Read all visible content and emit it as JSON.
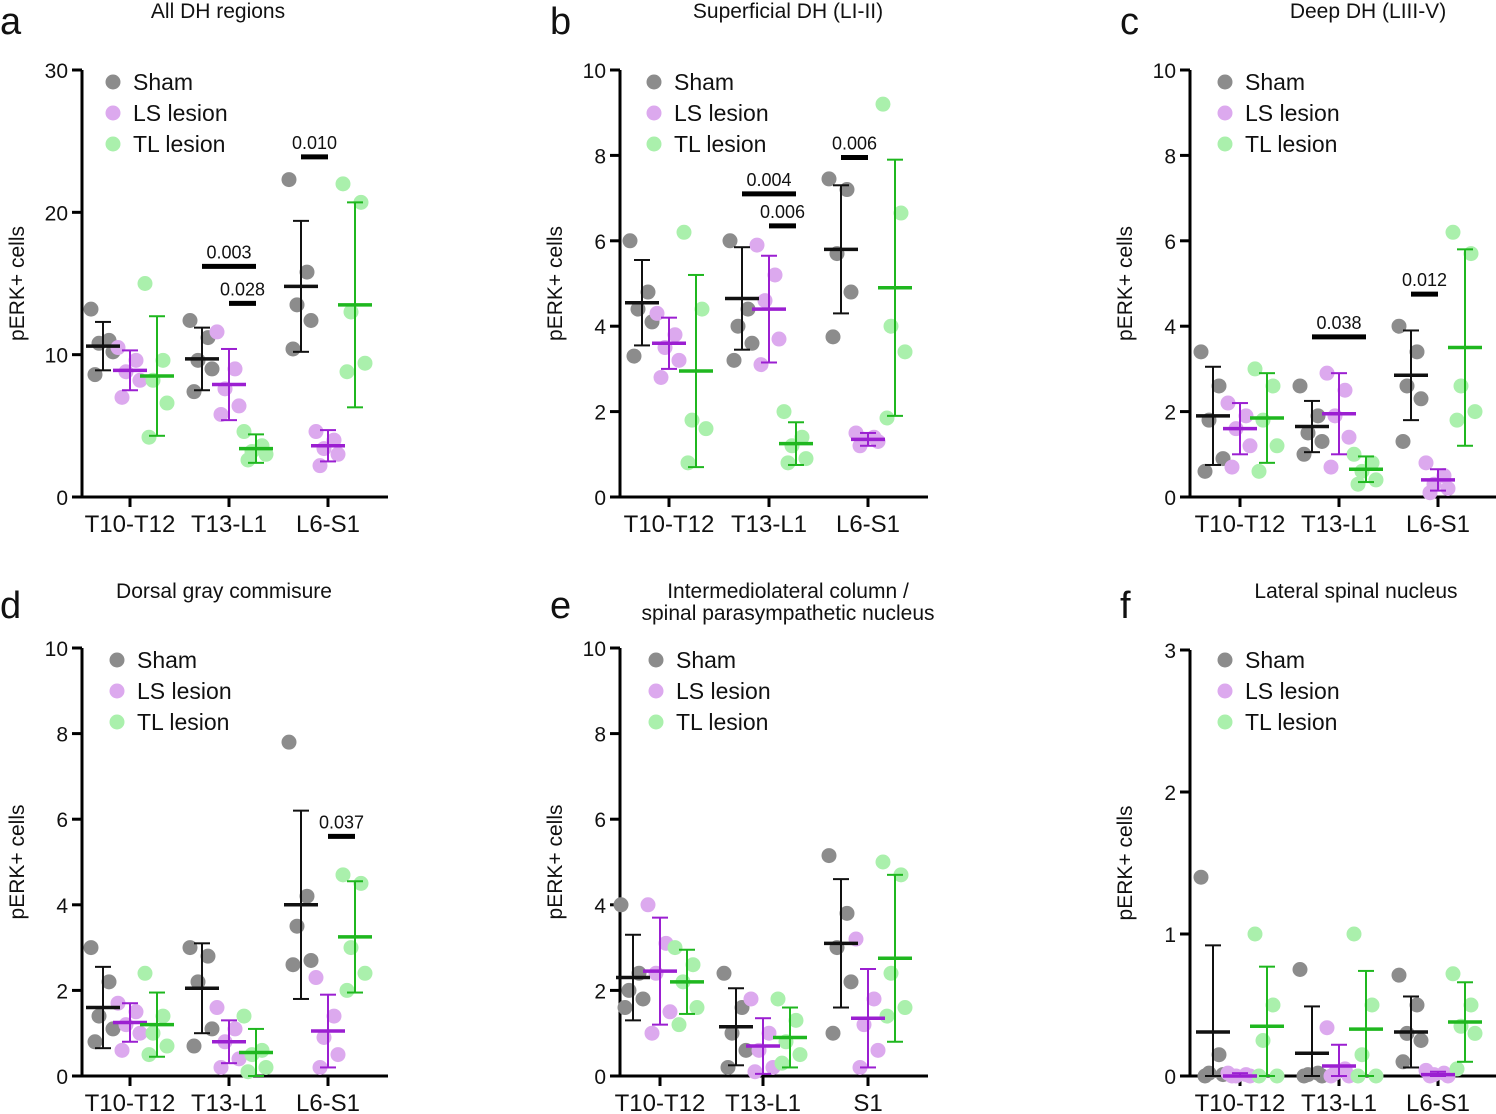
{
  "colors": {
    "sham": {
      "dot": "#8c8c8c",
      "line": "#111111"
    },
    "ls": {
      "dot": "#dca9ee",
      "line": "#9b1fd1"
    },
    "tl": {
      "dot": "#aaf0ac",
      "line": "#1fb71f"
    },
    "axis": "#000000"
  },
  "legend": [
    "Sham",
    "LS lesion",
    "TL lesion"
  ],
  "chart_data": [
    {
      "letter": "a",
      "title": [
        "All DH regions"
      ],
      "type": "scatter",
      "ylabel": "pERK+ cells",
      "ylim": [
        0,
        30
      ],
      "yticks": [
        0,
        10,
        20,
        30
      ],
      "categories": [
        "T10-T12",
        "T13-L1",
        "L6-S1"
      ],
      "series": [
        {
          "name": "Sham",
          "mean": [
            10.6,
            9.7,
            14.8
          ],
          "sd": [
            1.7,
            2.2,
            4.6
          ],
          "points": [
            [
              13.2,
              11.0,
              10.8,
              10.2,
              8.6
            ],
            [
              12.4,
              11.2,
              9.6,
              9.0,
              7.4
            ],
            [
              22.3,
              15.8,
              13.5,
              12.4,
              10.4
            ]
          ]
        },
        {
          "name": "LS lesion",
          "mean": [
            8.9,
            7.9,
            3.6
          ],
          "sd": [
            1.4,
            2.5,
            1.1
          ],
          "points": [
            [
              10.5,
              9.6,
              8.8,
              8.2,
              7.0
            ],
            [
              11.6,
              9.0,
              7.6,
              6.4,
              5.8
            ],
            [
              4.6,
              4.0,
              3.4,
              3.0,
              2.2
            ]
          ]
        },
        {
          "name": "TL lesion",
          "mean": [
            8.5,
            3.4,
            13.5
          ],
          "sd": [
            4.2,
            1.0,
            7.2
          ],
          "points": [
            [
              15.0,
              9.6,
              8.2,
              6.6,
              4.2
            ],
            [
              4.6,
              3.6,
              3.2,
              3.0,
              2.6
            ],
            [
              22.0,
              20.7,
              13.0,
              9.4,
              8.8
            ]
          ]
        }
      ],
      "comparisons": [
        {
          "label": "0.003",
          "cat": 1,
          "from": 0,
          "to": 2,
          "y": 16.2
        },
        {
          "label": "0.028",
          "cat": 1,
          "from": 1,
          "to": 2,
          "y": 13.6
        },
        {
          "label": "0.010",
          "cat": 2,
          "from": 0,
          "to": 1,
          "y": 23.9
        }
      ]
    },
    {
      "letter": "b",
      "title": [
        "Superficial DH (LI-II)"
      ],
      "type": "scatter",
      "ylabel": "pERK+ cells",
      "ylim": [
        0,
        10
      ],
      "yticks": [
        0,
        2,
        4,
        6,
        8,
        10
      ],
      "categories": [
        "T10-T12",
        "T13-L1",
        "L6-S1"
      ],
      "series": [
        {
          "name": "Sham",
          "mean": [
            4.55,
            4.65,
            5.8
          ],
          "sd": [
            1.0,
            1.2,
            1.5
          ],
          "points": [
            [
              6.0,
              4.8,
              4.4,
              4.1,
              3.3
            ],
            [
              6.0,
              4.4,
              4.0,
              3.6,
              3.2
            ],
            [
              7.45,
              7.2,
              5.7,
              4.8,
              3.75
            ]
          ]
        },
        {
          "name": "LS lesion",
          "mean": [
            3.6,
            4.4,
            1.35
          ],
          "sd": [
            0.6,
            1.25,
            0.15
          ],
          "points": [
            [
              4.3,
              3.8,
              3.5,
              3.2,
              2.8
            ],
            [
              5.9,
              5.2,
              4.6,
              3.7,
              3.1
            ],
            [
              1.5,
              1.4,
              1.35,
              1.3,
              1.2
            ]
          ]
        },
        {
          "name": "TL lesion",
          "mean": [
            2.95,
            1.25,
            4.9
          ],
          "sd": [
            2.25,
            0.5,
            3.0
          ],
          "points": [
            [
              6.2,
              4.4,
              1.8,
              1.6,
              0.8
            ],
            [
              2.0,
              1.4,
              1.2,
              0.9,
              0.8
            ],
            [
              9.2,
              6.65,
              4.0,
              3.4,
              1.85
            ]
          ]
        }
      ],
      "comparisons": [
        {
          "label": "0.004",
          "cat": 1,
          "from": 0,
          "to": 2,
          "y": 7.1
        },
        {
          "label": "0.006",
          "cat": 1,
          "from": 1,
          "to": 2,
          "y": 6.35
        },
        {
          "label": "0.006",
          "cat": 2,
          "from": 0,
          "to": 1,
          "y": 7.95
        }
      ]
    },
    {
      "letter": "c",
      "title": [
        "Deep DH (LIII-V)"
      ],
      "type": "scatter",
      "ylabel": "pERK+ cells",
      "ylim": [
        0,
        10
      ],
      "yticks": [
        0,
        2,
        4,
        6,
        8,
        10
      ],
      "categories": [
        "T10-T12",
        "T13-L1",
        "L6-S1"
      ],
      "series": [
        {
          "name": "Sham",
          "mean": [
            1.9,
            1.65,
            2.85
          ],
          "sd": [
            1.15,
            0.6,
            1.05
          ],
          "points": [
            [
              3.4,
              2.6,
              1.8,
              0.9,
              0.6
            ],
            [
              2.6,
              1.9,
              1.5,
              1.3,
              1.0
            ],
            [
              4.0,
              3.4,
              2.6,
              2.3,
              1.3
            ]
          ]
        },
        {
          "name": "LS lesion",
          "mean": [
            1.6,
            1.95,
            0.4
          ],
          "sd": [
            0.6,
            0.95,
            0.25
          ],
          "points": [
            [
              2.2,
              1.9,
              1.6,
              1.2,
              0.7
            ],
            [
              2.9,
              2.5,
              1.9,
              1.4,
              0.7
            ],
            [
              0.8,
              0.5,
              0.3,
              0.2,
              0.1
            ]
          ]
        },
        {
          "name": "TL lesion",
          "mean": [
            1.85,
            0.65,
            3.5
          ],
          "sd": [
            1.05,
            0.3,
            2.3
          ],
          "points": [
            [
              3.0,
              2.6,
              1.8,
              1.2,
              0.6
            ],
            [
              1.0,
              0.8,
              0.6,
              0.4,
              0.3
            ],
            [
              6.2,
              5.7,
              2.6,
              2.0,
              1.8
            ]
          ]
        }
      ],
      "comparisons": [
        {
          "label": "0.038",
          "cat": 1,
          "from": 0,
          "to": 2,
          "y": 3.75
        },
        {
          "label": "0.012",
          "cat": 2,
          "from": 0,
          "to": 1,
          "y": 4.75
        }
      ]
    },
    {
      "letter": "d",
      "title": [
        "Dorsal gray commisure"
      ],
      "type": "scatter",
      "ylabel": "pERK+ cells",
      "ylim": [
        0,
        10
      ],
      "yticks": [
        0,
        2,
        4,
        6,
        8,
        10
      ],
      "categories": [
        "T10-T12",
        "T13-L1",
        "L6-S1"
      ],
      "series": [
        {
          "name": "Sham",
          "mean": [
            1.6,
            2.05,
            4.0
          ],
          "sd": [
            0.95,
            1.05,
            2.2
          ],
          "points": [
            [
              3.0,
              2.2,
              1.4,
              1.1,
              0.8
            ],
            [
              3.0,
              2.8,
              2.2,
              1.1,
              0.7
            ],
            [
              7.8,
              4.2,
              3.5,
              2.7,
              2.6
            ]
          ]
        },
        {
          "name": "LS lesion",
          "mean": [
            1.25,
            0.8,
            1.05
          ],
          "sd": [
            0.45,
            0.5,
            0.85
          ],
          "points": [
            [
              1.7,
              1.5,
              1.2,
              1.0,
              0.6
            ],
            [
              1.6,
              1.1,
              0.8,
              0.4,
              0.2
            ],
            [
              2.3,
              1.4,
              0.9,
              0.5,
              0.2
            ]
          ]
        },
        {
          "name": "TL lesion",
          "mean": [
            1.2,
            0.55,
            3.25
          ],
          "sd": [
            0.75,
            0.55,
            1.3
          ],
          "points": [
            [
              2.4,
              1.4,
              1.0,
              0.7,
              0.5
            ],
            [
              1.4,
              0.6,
              0.5,
              0.2,
              0.1
            ],
            [
              4.7,
              4.5,
              3.0,
              2.4,
              2.0
            ]
          ]
        }
      ],
      "comparisons": [
        {
          "label": "0.037",
          "cat": 2,
          "from": 1,
          "to": 2,
          "y": 5.6
        }
      ]
    },
    {
      "letter": "e",
      "title": [
        "Intermediolateral column /",
        "spinal parasympathetic nucleus"
      ],
      "type": "scatter",
      "ylabel": "pERK+ cells",
      "ylim": [
        0,
        10
      ],
      "yticks": [
        0,
        2,
        4,
        6,
        8,
        10
      ],
      "categories": [
        "T10-T12",
        "T13-L1",
        "S1"
      ],
      "series": [
        {
          "name": "Sham",
          "mean": [
            2.3,
            1.15,
            3.1
          ],
          "sd": [
            1.0,
            0.9,
            1.5
          ],
          "points": [
            [
              4.0,
              2.4,
              2.0,
              1.8,
              1.6
            ],
            [
              2.4,
              1.6,
              1.0,
              0.6,
              0.2
            ],
            [
              5.15,
              3.8,
              3.0,
              2.2,
              1.0
            ]
          ]
        },
        {
          "name": "LS lesion",
          "mean": [
            2.45,
            0.7,
            1.35
          ],
          "sd": [
            1.25,
            0.65,
            1.15
          ],
          "points": [
            [
              4.0,
              3.1,
              2.4,
              1.5,
              1.0
            ],
            [
              1.8,
              1.0,
              0.6,
              0.2,
              0.1
            ],
            [
              3.2,
              1.8,
              1.2,
              0.6,
              0.2
            ]
          ]
        },
        {
          "name": "TL lesion",
          "mean": [
            2.2,
            0.9,
            2.75
          ],
          "sd": [
            0.75,
            0.7,
            1.95
          ],
          "points": [
            [
              3.0,
              2.6,
              2.2,
              1.6,
              1.2
            ],
            [
              1.8,
              1.3,
              0.8,
              0.5,
              0.3
            ],
            [
              5.0,
              4.7,
              2.4,
              1.6,
              1.4
            ]
          ]
        }
      ],
      "comparisons": []
    },
    {
      "letter": "f",
      "title": [
        "Lateral spinal nucleus"
      ],
      "type": "scatter",
      "ylabel": "pERK+ cells",
      "ylim": [
        0,
        3
      ],
      "yticks": [
        0,
        1,
        2,
        3
      ],
      "categories": [
        "T10-T12",
        "T13-L1",
        "L6-S1"
      ],
      "series": [
        {
          "name": "Sham",
          "mean": [
            0.31,
            0.16,
            0.31
          ],
          "sd": [
            0.61,
            0.33,
            0.25
          ],
          "points": [
            [
              1.4,
              0.15,
              0.02,
              0.01,
              0.0
            ],
            [
              0.75,
              0.02,
              0.01,
              0.0,
              0.0
            ],
            [
              0.71,
              0.5,
              0.3,
              0.25,
              0.1
            ]
          ]
        },
        {
          "name": "LS lesion",
          "mean": [
            0.0,
            0.07,
            0.01
          ],
          "sd": [
            0.02,
            0.15,
            0.02
          ],
          "points": [
            [
              0.02,
              0.01,
              0.0,
              0.0,
              0.0
            ],
            [
              0.34,
              0.05,
              0.02,
              0.0,
              0.0
            ],
            [
              0.04,
              0.02,
              0.01,
              0.0,
              0.0
            ]
          ]
        },
        {
          "name": "TL lesion",
          "mean": [
            0.35,
            0.33,
            0.38
          ],
          "sd": [
            0.42,
            0.41,
            0.28
          ],
          "points": [
            [
              1.0,
              0.5,
              0.25,
              0.0,
              0.0
            ],
            [
              1.0,
              0.5,
              0.15,
              0.0,
              0.0
            ],
            [
              0.72,
              0.5,
              0.35,
              0.3,
              0.05
            ]
          ]
        }
      ],
      "comparisons": []
    }
  ]
}
